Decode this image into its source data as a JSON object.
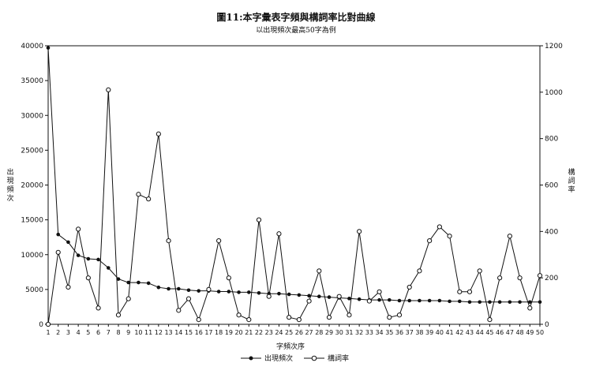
{
  "chart_data": {
    "type": "line",
    "title": "圖11:本字彙表字頻與構詞率比對曲線",
    "subtitle": "以出現頻次最高50字為例",
    "xlabel": "字頻次序",
    "ylabel_left": "出現頻次",
    "ylabel_right": "構詞率",
    "x": [
      1,
      2,
      3,
      4,
      5,
      6,
      7,
      8,
      9,
      10,
      11,
      12,
      13,
      14,
      15,
      16,
      17,
      18,
      19,
      20,
      21,
      22,
      23,
      24,
      25,
      26,
      27,
      28,
      29,
      30,
      31,
      32,
      33,
      34,
      35,
      36,
      37,
      38,
      39,
      40,
      41,
      42,
      43,
      44,
      45,
      46,
      47,
      48,
      49,
      50
    ],
    "y_left": {
      "min": 0,
      "max": 40000,
      "ticks": [
        0,
        5000,
        10000,
        15000,
        20000,
        25000,
        30000,
        35000,
        40000
      ]
    },
    "y_right": {
      "min": 0,
      "max": 1200,
      "ticks": [
        0,
        200,
        400,
        600,
        800,
        1000,
        1200
      ]
    },
    "grid": false,
    "legend_position": "bottom",
    "series": [
      {
        "name": "出現頻次",
        "axis": "left",
        "marker": "filled-circle",
        "values": [
          39700,
          12900,
          11800,
          9900,
          9400,
          9300,
          8100,
          6500,
          6000,
          6000,
          5900,
          5300,
          5100,
          5100,
          4900,
          4800,
          4800,
          4700,
          4700,
          4600,
          4600,
          4500,
          4400,
          4400,
          4300,
          4200,
          4100,
          4000,
          3900,
          3800,
          3700,
          3600,
          3500,
          3500,
          3500,
          3400,
          3400,
          3400,
          3400,
          3400,
          3300,
          3300,
          3200,
          3200,
          3200,
          3200,
          3200,
          3200,
          3200,
          3200
        ]
      },
      {
        "name": "構詞率",
        "axis": "right",
        "marker": "open-circle",
        "values": [
          0,
          310,
          160,
          410,
          200,
          70,
          1010,
          40,
          110,
          560,
          540,
          820,
          360,
          60,
          110,
          20,
          150,
          360,
          200,
          40,
          20,
          450,
          120,
          390,
          30,
          20,
          100,
          230,
          30,
          120,
          40,
          400,
          100,
          140,
          30,
          40,
          160,
          230,
          360,
          420,
          380,
          140,
          140,
          230,
          20,
          200,
          380,
          200,
          70,
          210
        ]
      }
    ]
  }
}
